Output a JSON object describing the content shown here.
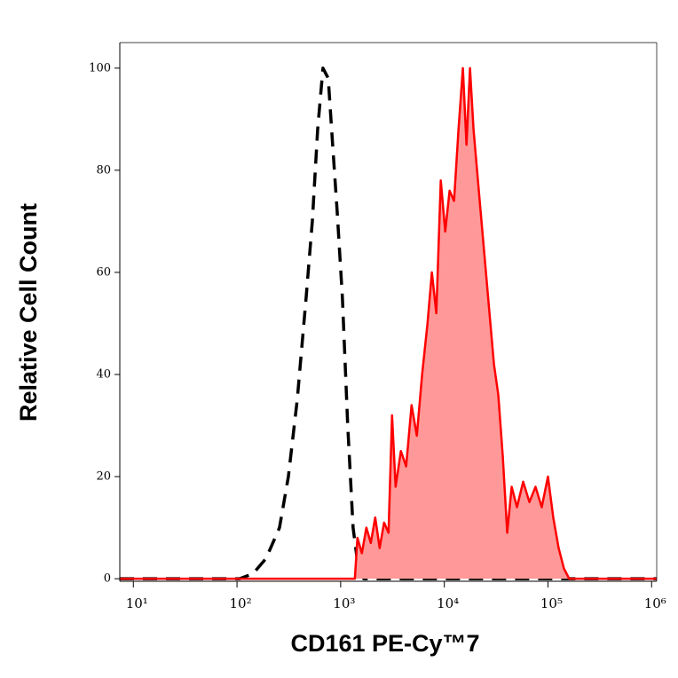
{
  "chart_data": {
    "type": "histogram-overlay",
    "x_label": "CD161 PE-Cy™7",
    "y_label": "Relative Cell Count",
    "x_scale": "log",
    "xlim": [
      7.4,
      1120000
    ],
    "ylim": [
      -0.5,
      105
    ],
    "xticks": [
      {
        "value": 10,
        "label": "10¹"
      },
      {
        "value": 100,
        "label": "10²"
      },
      {
        "value": 1000,
        "label": "10³"
      },
      {
        "value": 10000,
        "label": "10⁴"
      },
      {
        "value": 100000,
        "label": "10⁵"
      },
      {
        "value": 1000000,
        "label": "10⁶"
      }
    ],
    "yticks": [
      0,
      20,
      40,
      60,
      80,
      100
    ],
    "series": [
      {
        "color": "#000000",
        "dash": true,
        "fill": null,
        "x": [
          7.4,
          106,
          143,
          191,
          257,
          313,
          381,
          464,
          533,
          600,
          675,
          759,
          837,
          925,
          1040,
          1170,
          1318,
          1482,
          1667,
          1120000
        ],
        "values": [
          0,
          0,
          1,
          4,
          10,
          20,
          35,
          55,
          70,
          88,
          100,
          98,
          85,
          72,
          55,
          30,
          10,
          2,
          0,
          0
        ]
      },
      {
        "color": "#ff0000",
        "dash": false,
        "fill": "#ff9999",
        "x": [
          7.4,
          1371,
          1452,
          1603,
          1770,
          1954,
          2155,
          2378,
          2624,
          2897,
          3133,
          3390,
          3811,
          4285,
          4831,
          5433,
          6109,
          6887,
          7586,
          8375,
          9247,
          10210,
          11250,
          12420,
          13710,
          15110,
          16370,
          17700,
          19140,
          20700,
          22390,
          24720,
          27290,
          30130,
          33190,
          36650,
          40460,
          44670,
          50230,
          57680,
          66220,
          75860,
          87100,
          100000,
          112500,
          126800,
          142600,
          160300,
          1120000
        ],
        "values": [
          0,
          0,
          8,
          5,
          10,
          7,
          12,
          6,
          11,
          9,
          32,
          18,
          25,
          22,
          34,
          28,
          40,
          50,
          60,
          52,
          78,
          68,
          76,
          74,
          88,
          100,
          85,
          100,
          88,
          80,
          72,
          62,
          52,
          42,
          36,
          24,
          9,
          18,
          14,
          19,
          15,
          18,
          14,
          20,
          12,
          6,
          2,
          0,
          0
        ]
      }
    ]
  }
}
